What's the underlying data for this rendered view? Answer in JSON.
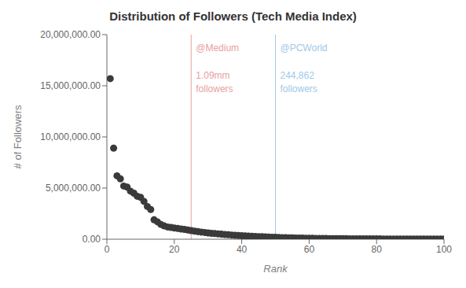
{
  "chart_data": {
    "type": "scatter",
    "title": "Distribution of Followers (Tech Media Index)",
    "x_label": "Rank",
    "y_label": "# of Followers",
    "xlim": [
      0,
      100
    ],
    "xticks": [
      0,
      20,
      40,
      60,
      80,
      100
    ],
    "ylim": [
      0,
      20000000
    ],
    "yticks": [
      {
        "value": 0,
        "label": "0.00"
      },
      {
        "value": 5000000,
        "label": "5,000,000.00"
      },
      {
        "value": 10000000,
        "label": "10,000,000.00"
      },
      {
        "value": 15000000,
        "label": "15,000,000.00"
      },
      {
        "value": 20000000,
        "label": "20,000,000.00"
      }
    ],
    "grid": false,
    "color": "#3a3a3a",
    "x": [
      1,
      2,
      3,
      4,
      5,
      6,
      7,
      8,
      9,
      10,
      11,
      12,
      13,
      14,
      15,
      16,
      17,
      18,
      19,
      20,
      21,
      22,
      23,
      24,
      25,
      26,
      27,
      28,
      29,
      30,
      31,
      32,
      33,
      34,
      35,
      36,
      37,
      38,
      39,
      40,
      41,
      42,
      43,
      44,
      45,
      46,
      47,
      48,
      49,
      50,
      51,
      52,
      53,
      54,
      55,
      56,
      57,
      58,
      59,
      60,
      61,
      62,
      63,
      64,
      65,
      66,
      67,
      68,
      69,
      70,
      71,
      72,
      73,
      74,
      75,
      76,
      77,
      78,
      79,
      80,
      81,
      82,
      83,
      84,
      85,
      86,
      87,
      88,
      89,
      90,
      91,
      92,
      93,
      94,
      95,
      96,
      97,
      98,
      99,
      100
    ],
    "values": [
      15700000,
      8900000,
      6200000,
      5900000,
      5200000,
      5100000,
      4700000,
      4500000,
      4200000,
      4100000,
      3700000,
      3200000,
      2900000,
      1900000,
      1700000,
      1450000,
      1300000,
      1200000,
      1150000,
      1100000,
      1050000,
      1000000,
      960000,
      900000,
      850000,
      790000,
      740000,
      700000,
      660000,
      620000,
      580000,
      550000,
      520000,
      490000,
      460000,
      435000,
      410000,
      385000,
      360000,
      340000,
      320000,
      300000,
      280000,
      265000,
      250000,
      244862,
      230000,
      215000,
      200000,
      185000,
      172000,
      160000,
      150000,
      140000,
      130000,
      121000,
      113000,
      106000,
      99000,
      93000,
      87000,
      82000,
      77000,
      72000,
      68000,
      64000,
      60000,
      57000,
      54000,
      51000,
      48000,
      45500,
      43000,
      40800,
      38700,
      36700,
      34800,
      33000,
      31300,
      29700,
      28200,
      26800,
      25400,
      24100,
      22900,
      21700,
      20600,
      19600,
      18600,
      17700,
      16800,
      16000,
      15200,
      14500,
      13800,
      13100,
      12500,
      11900,
      11300,
      10800
    ],
    "annotations": [
      {
        "x": 25,
        "color": "#e8a0a0",
        "label": "@Medium",
        "sublabel": "1.09mm\nfollowers"
      },
      {
        "x": 50,
        "color": "#a0c8e8",
        "label": "@PCWorld",
        "sublabel": "244,862\nfollowers"
      }
    ]
  }
}
